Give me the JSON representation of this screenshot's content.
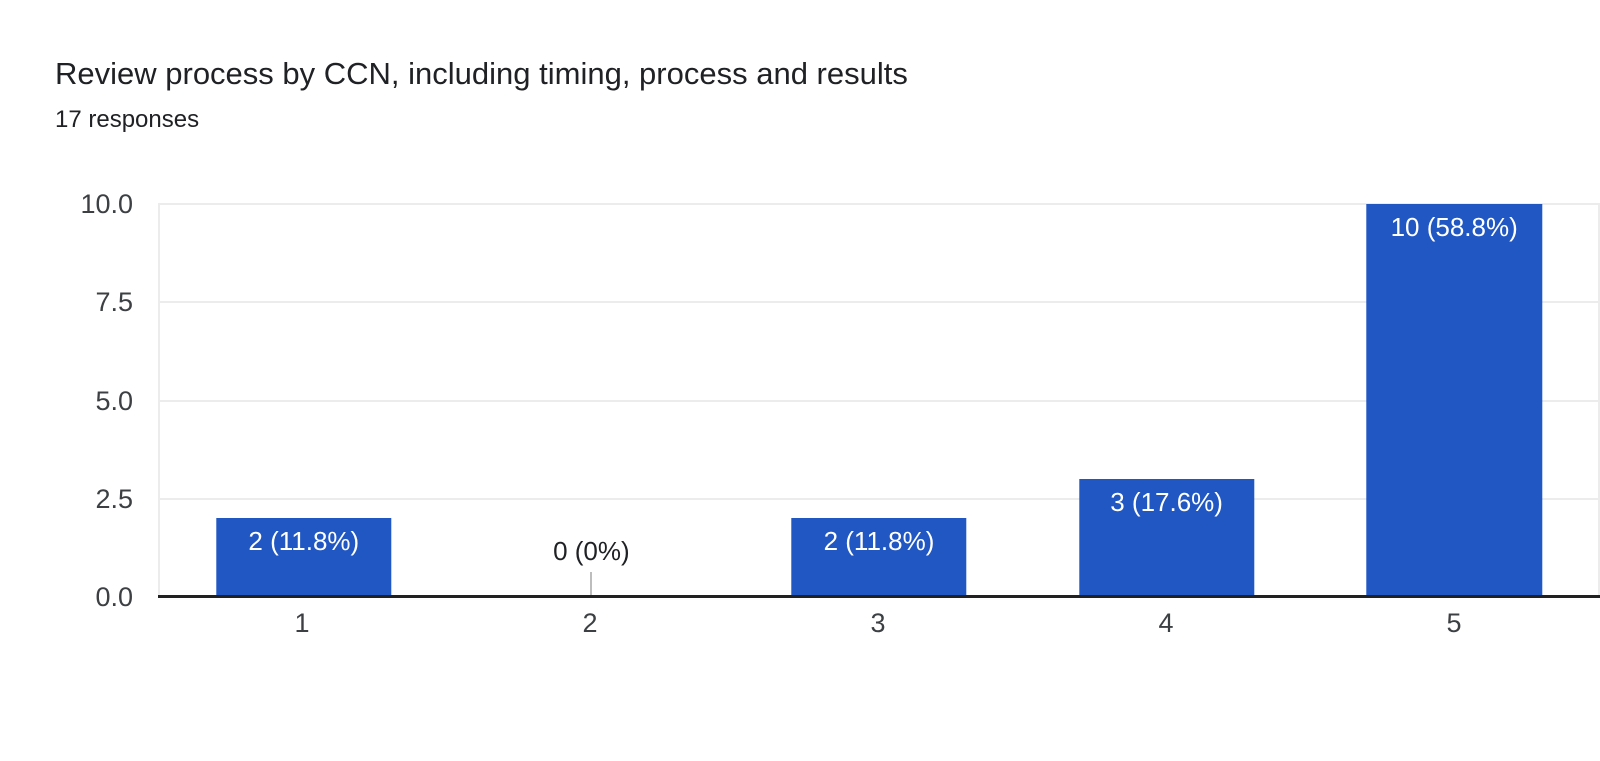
{
  "header": {
    "title": "Review process by CCN, including timing, process and results",
    "subtitle": "17 responses"
  },
  "chart_data": {
    "type": "bar",
    "title": "Review process by CCN, including timing, process and results",
    "subtitle": "17 responses",
    "categories": [
      "1",
      "2",
      "3",
      "4",
      "5"
    ],
    "values": [
      2,
      0,
      2,
      3,
      10
    ],
    "value_labels": [
      "2 (11.8%)",
      "0 (0%)",
      "2 (11.8%)",
      "3 (17.6%)",
      "10 (58.8%)"
    ],
    "total_responses": 17,
    "xlabel": "",
    "ylabel": "",
    "ylim": [
      0,
      10
    ],
    "yticks": [
      0,
      2.5,
      5,
      7.5,
      10
    ],
    "ytick_labels": [
      "0.0",
      "2.5",
      "5.0",
      "7.5",
      "10.0"
    ],
    "grid": true,
    "legend": false,
    "colors": {
      "bar": "#2157c3",
      "bar_label": "#ffffff",
      "zero_label": "#202124",
      "zero_stub": "#bdbdbd",
      "grid": "#ececec",
      "baseline": "#212121",
      "axis_text": "#3c4043",
      "title_text": "#202124"
    }
  }
}
